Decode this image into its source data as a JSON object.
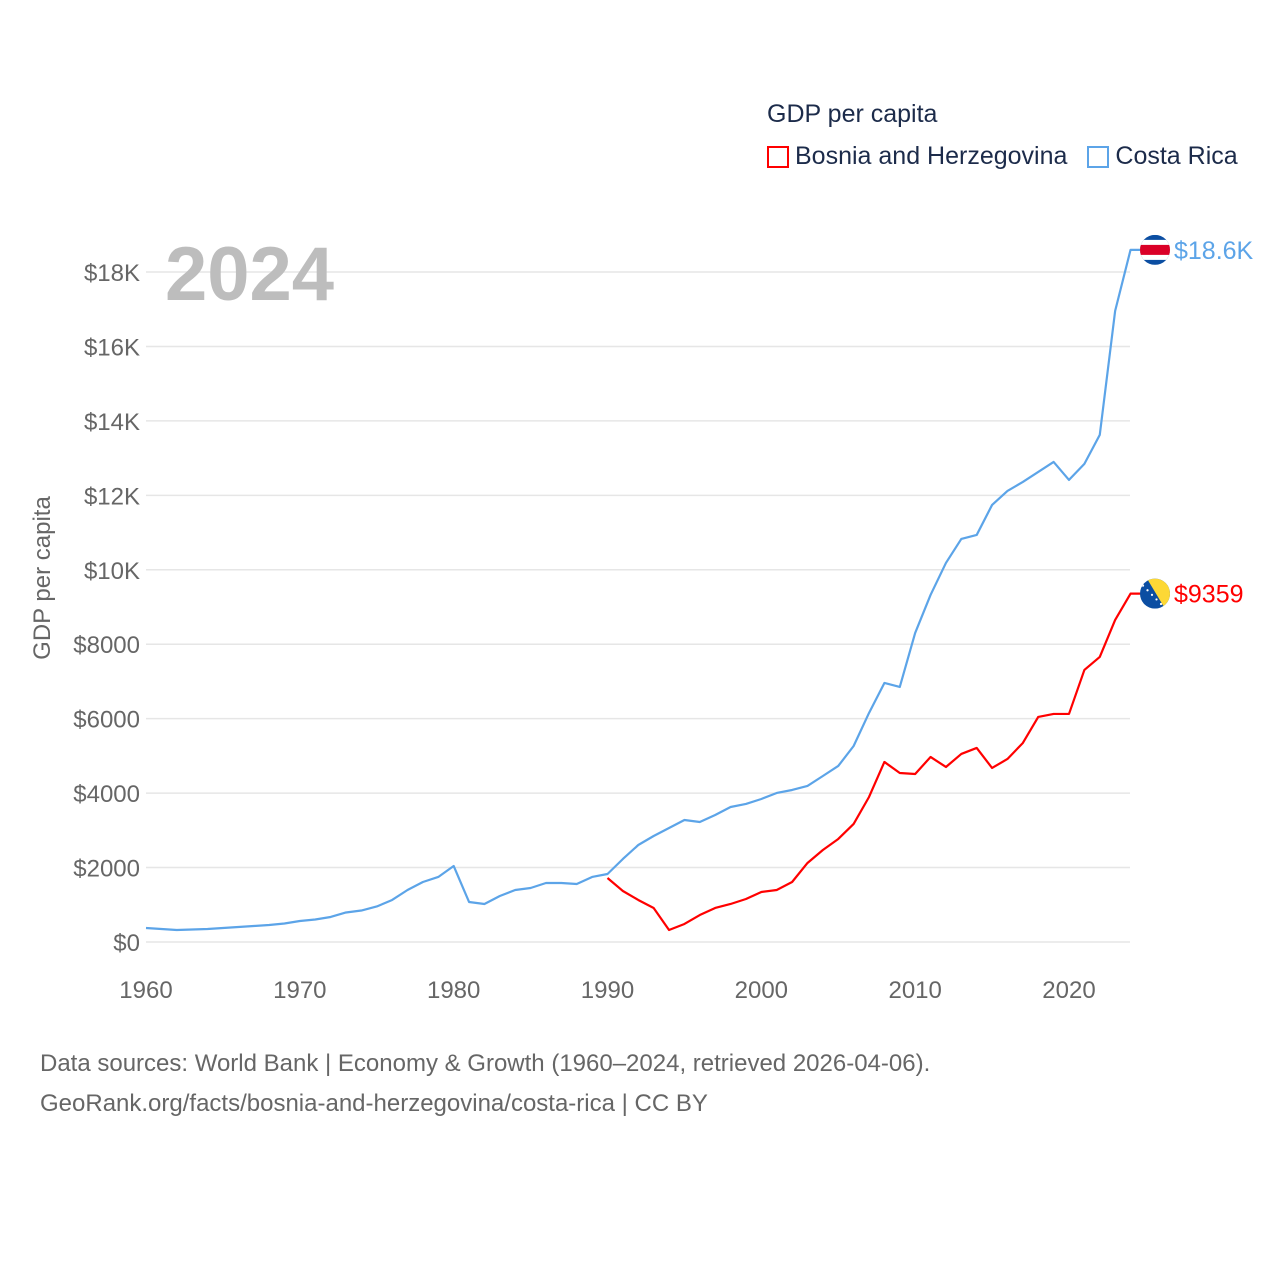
{
  "chart_data": {
    "type": "line",
    "title": "GDP per capita",
    "ylabel": "GDP per capita",
    "xlabel": "",
    "year_overlay": "2024",
    "xlim": [
      1960,
      2024
    ],
    "ylim": [
      0,
      18600
    ],
    "x_ticks": [
      1960,
      1970,
      1980,
      1990,
      2000,
      2010,
      2020
    ],
    "y_ticks": [
      {
        "value": 0,
        "label": "$0"
      },
      {
        "value": 2000,
        "label": "$2000"
      },
      {
        "value": 4000,
        "label": "$4000"
      },
      {
        "value": 6000,
        "label": "$6000"
      },
      {
        "value": 8000,
        "label": "$8000"
      },
      {
        "value": 10000,
        "label": "$10K"
      },
      {
        "value": 12000,
        "label": "$12K"
      },
      {
        "value": 14000,
        "label": "$14K"
      },
      {
        "value": 16000,
        "label": "$16K"
      },
      {
        "value": 18000,
        "label": "$18K"
      }
    ],
    "grid": true,
    "legend_position": "top-right",
    "series": [
      {
        "name": "Bosnia and Herzegovina",
        "color": "#ff0000",
        "end_label": "$9359",
        "flag": "bosnia-flag",
        "start_year": 1990,
        "values": [
          1720,
          1370,
          1129,
          914,
          322,
          484,
          725,
          914,
          1021,
          1155,
          1344,
          1397,
          1612,
          2123,
          2472,
          2768,
          3171,
          3896,
          4837,
          4541,
          4514,
          4971,
          4702,
          5052,
          5213,
          4675,
          4917,
          5347,
          6046,
          6127,
          6127,
          7309,
          7658,
          8652,
          9359
        ]
      },
      {
        "name": "Costa Rica",
        "color": "#5ca4e8",
        "end_label": "$18.6K",
        "flag": "costa-rica-flag",
        "start_year": 1960,
        "values": [
          376,
          350,
          322,
          336,
          350,
          376,
          403,
          430,
          457,
          497,
          564,
          605,
          672,
          793,
          846,
          954,
          1129,
          1397,
          1612,
          1747,
          2042,
          1075,
          1021,
          1236,
          1397,
          1451,
          1585,
          1585,
          1558,
          1747,
          1827,
          2230,
          2606,
          2848,
          3063,
          3278,
          3224,
          3412,
          3627,
          3708,
          3842,
          4004,
          4084,
          4192,
          4460,
          4729,
          5266,
          6153,
          6959,
          6852,
          8303,
          9324,
          10184,
          10829,
          10936,
          11742,
          12118,
          12360,
          12629,
          12898,
          12414,
          12844,
          13623,
          16955,
          18594
        ]
      }
    ]
  },
  "footer": {
    "line1": "Data sources: World Bank | Economy & Growth (1960–2024, retrieved 2026-04-06).",
    "line2": "GeoRank.org/facts/bosnia-and-herzegovina/costa-rica | CC BY"
  }
}
